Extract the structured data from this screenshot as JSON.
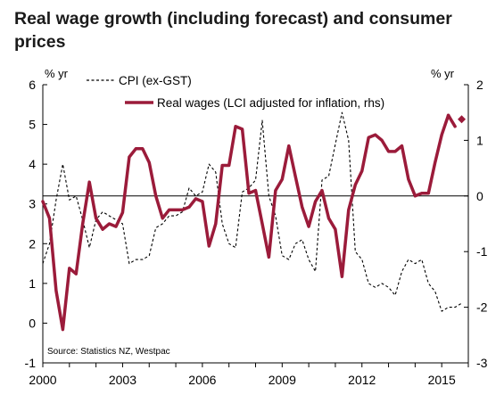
{
  "title": "Real wage growth (including forecast) and consumer prices",
  "chart_data": {
    "type": "line",
    "left_unit": "% yr",
    "right_unit": "% yr",
    "source": "Source: Statistics NZ, Westpac",
    "x_range": [
      2000,
      2016
    ],
    "x_ticks": [
      "2000",
      "2003",
      "2006",
      "2009",
      "2012",
      "2015"
    ],
    "x_tick_values": [
      2000,
      2003,
      2006,
      2009,
      2012,
      2015
    ],
    "y_left": {
      "range": [
        -1,
        6
      ],
      "ticks": [
        "-1",
        "0",
        "1",
        "2",
        "3",
        "4",
        "5",
        "6"
      ],
      "tick_values": [
        -1,
        0,
        1,
        2,
        3,
        4,
        5,
        6
      ]
    },
    "y_right": {
      "range": [
        -3,
        2
      ],
      "ticks": [
        "-3",
        "-2",
        "-1",
        "0",
        "1",
        "2"
      ],
      "tick_values": [
        -3,
        -2,
        -1,
        0,
        1,
        2
      ]
    },
    "reference_line": {
      "axis": "right",
      "value": 0
    },
    "series": [
      {
        "name": "CPI (ex-GST)",
        "axis": "left",
        "style": "dashed",
        "color": "#000000",
        "x": [
          2000.0,
          2000.25,
          2000.5,
          2000.75,
          2001.0,
          2001.25,
          2001.5,
          2001.75,
          2002.0,
          2002.25,
          2002.5,
          2002.75,
          2003.0,
          2003.25,
          2003.5,
          2003.75,
          2004.0,
          2004.25,
          2004.5,
          2004.75,
          2005.0,
          2005.25,
          2005.5,
          2005.75,
          2006.0,
          2006.25,
          2006.5,
          2006.75,
          2007.0,
          2007.25,
          2007.5,
          2007.75,
          2008.0,
          2008.25,
          2008.5,
          2008.75,
          2009.0,
          2009.25,
          2009.5,
          2009.75,
          2010.0,
          2010.25,
          2010.5,
          2010.75,
          2011.0,
          2011.25,
          2011.5,
          2011.75,
          2012.0,
          2012.25,
          2012.5,
          2012.75,
          2013.0,
          2013.25,
          2013.5,
          2013.75,
          2014.0,
          2014.25,
          2014.5,
          2014.75,
          2015.0,
          2015.25,
          2015.5,
          2015.75
        ],
        "values": [
          1.5,
          2.0,
          3.1,
          4.0,
          3.1,
          3.2,
          2.6,
          1.9,
          2.6,
          2.8,
          2.7,
          2.6,
          2.5,
          1.5,
          1.6,
          1.6,
          1.7,
          2.4,
          2.5,
          2.7,
          2.7,
          2.8,
          3.4,
          3.2,
          3.3,
          4.0,
          3.8,
          2.5,
          2.0,
          1.9,
          3.3,
          3.4,
          3.6,
          5.1,
          3.2,
          2.7,
          1.7,
          1.6,
          2.0,
          2.1,
          1.6,
          1.3,
          3.6,
          3.7,
          4.5,
          5.3,
          4.6,
          1.8,
          1.6,
          1.0,
          0.9,
          1.0,
          0.9,
          0.7,
          1.3,
          1.6,
          1.5,
          1.6,
          1.0,
          0.8,
          0.3,
          0.4,
          0.4,
          0.5
        ]
      },
      {
        "name": "Real wages (LCI adjusted for inflation, rhs)",
        "axis": "right",
        "style": "solid",
        "color": "#9b1b3a",
        "x": [
          2000.0,
          2000.25,
          2000.5,
          2000.75,
          2001.0,
          2001.25,
          2001.5,
          2001.75,
          2002.0,
          2002.25,
          2002.5,
          2002.75,
          2003.0,
          2003.25,
          2003.5,
          2003.75,
          2004.0,
          2004.25,
          2004.5,
          2004.75,
          2005.0,
          2005.25,
          2005.5,
          2005.75,
          2006.0,
          2006.25,
          2006.5,
          2006.75,
          2007.0,
          2007.25,
          2007.5,
          2007.75,
          2008.0,
          2008.25,
          2008.5,
          2008.75,
          2009.0,
          2009.25,
          2009.5,
          2009.75,
          2010.0,
          2010.25,
          2010.5,
          2010.75,
          2011.0,
          2011.25,
          2011.5,
          2011.75,
          2012.0,
          2012.25,
          2012.5,
          2012.75,
          2013.0,
          2013.25,
          2013.5,
          2013.75,
          2014.0,
          2014.25,
          2014.5,
          2014.75,
          2015.0,
          2015.25
        ],
        "values": [
          -0.1,
          -0.4,
          -1.7,
          -2.4,
          -1.3,
          -1.4,
          -0.5,
          0.25,
          -0.4,
          -0.6,
          -0.5,
          -0.55,
          -0.3,
          0.7,
          0.85,
          0.85,
          0.6,
          0.0,
          -0.4,
          -0.25,
          -0.25,
          -0.25,
          -0.2,
          -0.05,
          -0.1,
          -0.9,
          -0.5,
          0.55,
          0.55,
          1.25,
          1.2,
          0.05,
          0.1,
          -0.5,
          -1.1,
          0.1,
          0.3,
          0.9,
          0.35,
          -0.2,
          -0.55,
          -0.1,
          0.1,
          -0.4,
          -0.6,
          -1.45,
          -0.25,
          0.2,
          0.45,
          1.05,
          1.1,
          1.0,
          0.8,
          0.8,
          0.9,
          0.3,
          0.0,
          0.05,
          0.05,
          0.6,
          1.1,
          1.45
        ],
        "forecast_x": [
          2015.25,
          2015.5
        ],
        "forecast_values": [
          1.45,
          1.25
        ],
        "forecast_marker": {
          "x": 2015.75,
          "value": 1.38
        }
      }
    ]
  }
}
